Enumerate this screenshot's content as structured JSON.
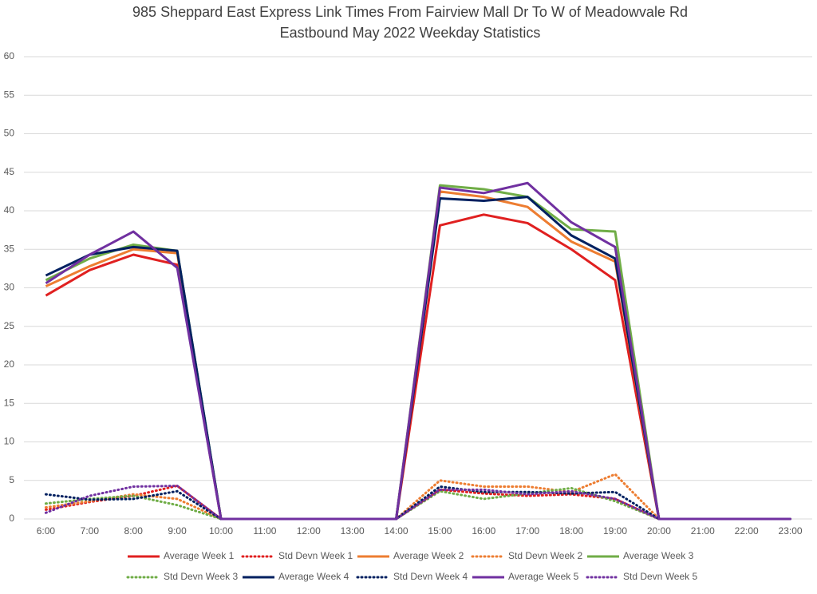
{
  "chart_data": {
    "type": "line",
    "title": "985 Sheppard East Express Link Times From Fairview Mall Dr To W of Meadowvale Rd",
    "subtitle": "Eastbound May 2022 Weekday Statistics",
    "categories": [
      "6:00",
      "7:00",
      "8:00",
      "9:00",
      "10:00",
      "11:00",
      "12:00",
      "13:00",
      "14:00",
      "15:00",
      "16:00",
      "17:00",
      "18:00",
      "19:00",
      "20:00",
      "21:00",
      "22:00",
      "23:00"
    ],
    "ylim": [
      0,
      60
    ],
    "yticks": [
      0,
      5,
      10,
      15,
      20,
      25,
      30,
      35,
      40,
      45,
      50,
      55,
      60
    ],
    "grid": true,
    "legend": "bottom",
    "series": [
      {
        "name": "Average Week 1",
        "color": "#e02020",
        "style": "solid",
        "values": [
          29,
          32.3,
          34.3,
          33,
          0,
          0,
          0,
          0,
          0,
          38.1,
          39.5,
          38.4,
          35,
          31,
          0,
          0,
          0,
          0
        ]
      },
      {
        "name": "Std Devn Week 1",
        "color": "#e02020",
        "style": "dotted",
        "values": [
          1.2,
          2.2,
          3.0,
          4.3,
          0,
          0,
          0,
          0,
          0,
          3.8,
          3.3,
          3.0,
          3.2,
          2.6,
          0,
          0,
          0,
          0
        ]
      },
      {
        "name": "Average Week 2",
        "color": "#ed7d31",
        "style": "solid",
        "values": [
          30.2,
          32.8,
          35,
          34.5,
          0,
          0,
          0,
          0,
          0,
          42.5,
          41.8,
          40.5,
          36,
          33.4,
          0,
          0,
          0,
          0
        ]
      },
      {
        "name": "Std Devn Week 2",
        "color": "#ed7d31",
        "style": "dotted",
        "values": [
          1.5,
          2.3,
          3.2,
          2.6,
          0,
          0,
          0,
          0,
          0,
          5.0,
          4.2,
          4.2,
          3.5,
          5.8,
          0,
          0,
          0,
          0
        ]
      },
      {
        "name": "Average Week 3",
        "color": "#70ad47",
        "style": "solid",
        "values": [
          31,
          33.8,
          35.6,
          34.8,
          0,
          0,
          0,
          0,
          0,
          43.3,
          42.8,
          41.8,
          37.6,
          37.3,
          0,
          0,
          0,
          0
        ]
      },
      {
        "name": "Std Devn Week 3",
        "color": "#70ad47",
        "style": "dotted",
        "values": [
          2.0,
          2.6,
          3.0,
          1.8,
          0,
          0,
          0,
          0,
          0,
          3.6,
          2.6,
          3.3,
          4.0,
          2.3,
          0,
          0,
          0,
          0
        ]
      },
      {
        "name": "Average Week 4",
        "color": "#002060",
        "style": "solid",
        "values": [
          31.6,
          34.3,
          35.3,
          34.8,
          0,
          0,
          0,
          0,
          0,
          41.6,
          41.3,
          41.8,
          36.8,
          33.8,
          0,
          0,
          0,
          0
        ]
      },
      {
        "name": "Std Devn Week 4",
        "color": "#002060",
        "style": "dotted",
        "values": [
          3.2,
          2.5,
          2.6,
          3.6,
          0,
          0,
          0,
          0,
          0,
          4.2,
          3.5,
          3.5,
          3.3,
          3.5,
          0,
          0,
          0,
          0
        ]
      },
      {
        "name": "Average Week 5",
        "color": "#7030a0",
        "style": "solid",
        "values": [
          30.6,
          34.3,
          37.3,
          32.6,
          0,
          0,
          0,
          0,
          0,
          43,
          42.3,
          43.6,
          38.5,
          35.3,
          0,
          0,
          0,
          0
        ]
      },
      {
        "name": "Std Devn Week 5",
        "color": "#7030a0",
        "style": "dotted",
        "values": [
          0.8,
          3.0,
          4.2,
          4.3,
          0,
          0,
          0,
          0,
          0,
          3.8,
          3.8,
          3.2,
          3.6,
          2.6,
          0,
          0,
          0,
          0
        ]
      }
    ]
  }
}
